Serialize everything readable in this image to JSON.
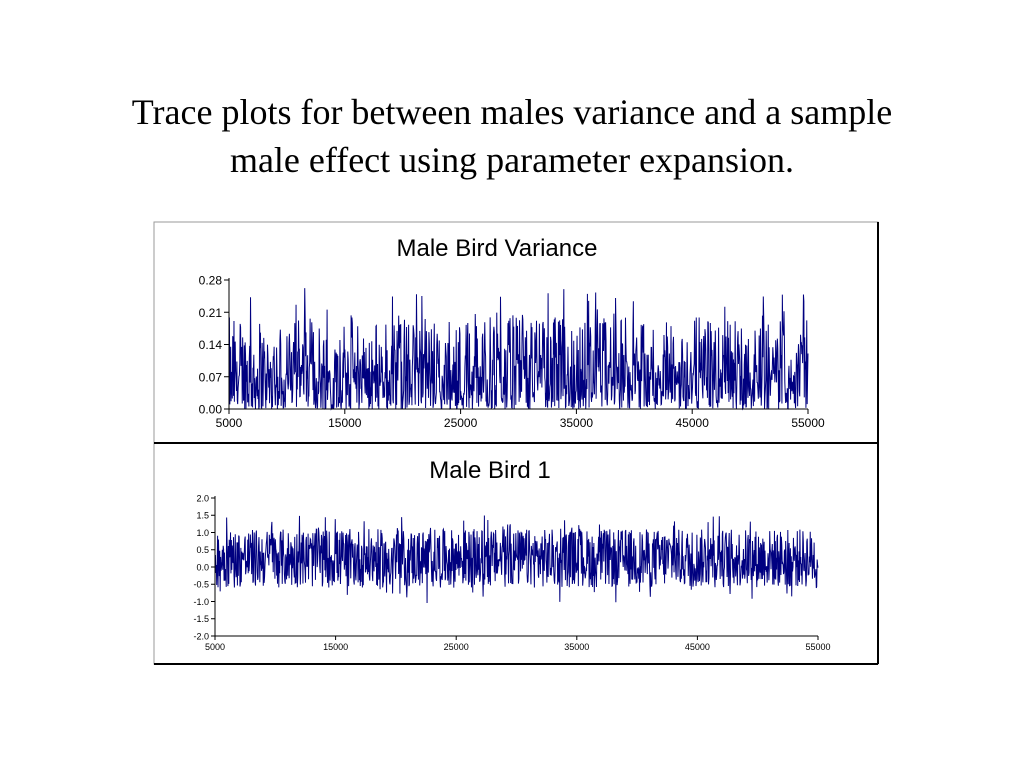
{
  "slide": {
    "title_line1": "Trace plots for between males variance and a sample",
    "title_line2": "male effect using parameter expansion."
  },
  "colors": {
    "trace": "#000080",
    "frame": "#000000"
  },
  "chart_data": [
    {
      "type": "line",
      "title": "Male Bird Variance",
      "xlabel": "",
      "ylabel": "",
      "xlim": [
        5000,
        55000
      ],
      "ylim": [
        0.0,
        0.28
      ],
      "x_ticks": [
        5000,
        15000,
        25000,
        35000,
        45000,
        55000
      ],
      "x_tick_labels": [
        "5000",
        "15000",
        "25000",
        "35000",
        "45000",
        "55000"
      ],
      "y_ticks": [
        0.0,
        0.07,
        0.14,
        0.21,
        0.28
      ],
      "y_tick_labels": [
        "0.00",
        "0.07",
        "0.14",
        "0.21",
        "0.28"
      ],
      "grid": false,
      "series": [
        {
          "x_start": 5000,
          "x_end": 55000,
          "n_samples": 50000,
          "typical_range": [
            0.0,
            0.2
          ],
          "max": 0.27,
          "min": 0.0
        }
      ]
    },
    {
      "type": "line",
      "title": "Male Bird 1",
      "xlabel": "",
      "ylabel": "",
      "xlim": [
        5000,
        55000
      ],
      "ylim": [
        -2.0,
        2.0
      ],
      "x_ticks": [
        5000,
        15000,
        25000,
        35000,
        45000,
        55000
      ],
      "x_tick_labels": [
        "5000",
        "15000",
        "25000",
        "35000",
        "45000",
        "55000"
      ],
      "y_ticks": [
        2.0,
        1.5,
        1.0,
        0.5,
        0.0,
        -0.5,
        -1.0,
        -1.5,
        -2.0
      ],
      "y_tick_labels": [
        "2.0",
        "1.5",
        "1.0",
        "0.5",
        "0.0",
        "-0.5",
        "-1.0",
        "-1.5",
        "-2.0"
      ],
      "grid": false,
      "series": [
        {
          "x_start": 5000,
          "x_end": 55000,
          "n_samples": 50000,
          "typical_range": [
            -0.6,
            1.1
          ],
          "max": 1.5,
          "min": -1.1
        }
      ]
    }
  ]
}
